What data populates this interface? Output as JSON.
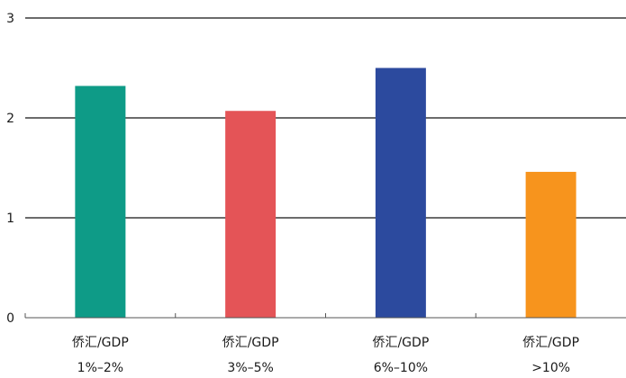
{
  "chart_data": {
    "type": "bar",
    "categories": [
      [
        "侨汇/GDP",
        "1%–2%"
      ],
      [
        "侨汇/GDP",
        "3%–5%"
      ],
      [
        "侨汇/GDP",
        "6%–10%"
      ],
      [
        "侨汇/GDP",
        ">10%"
      ]
    ],
    "values": [
      2.32,
      2.07,
      2.5,
      1.46
    ],
    "colors": [
      "#0e9b87",
      "#e45457",
      "#2c4a9e",
      "#f7941d"
    ],
    "yticks": [
      0,
      1,
      2,
      3
    ],
    "ylim": [
      0,
      3
    ],
    "grid": true,
    "legend": "none",
    "title": "",
    "xlabel": "",
    "ylabel": ""
  }
}
